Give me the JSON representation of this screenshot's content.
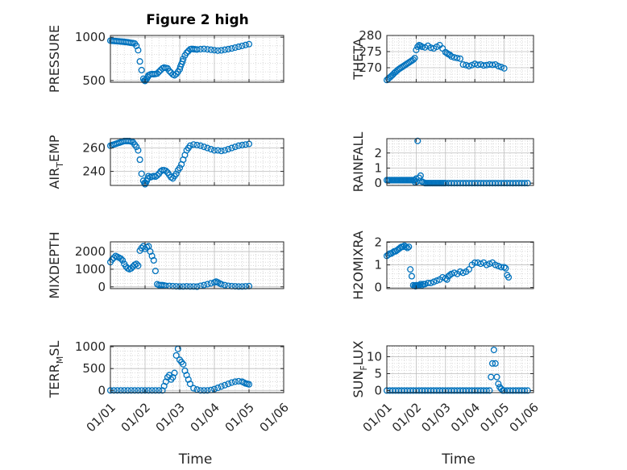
{
  "figure": {
    "title": "Figure 2 high",
    "marker_color": "#0072BD",
    "grid": true
  },
  "chart_data": [
    {
      "type": "scatter",
      "ylabel": "PRESSURE",
      "ylabel_sub": "",
      "ylabel_tail": "",
      "ylim": [
        480,
        1020
      ],
      "yticks": [
        500,
        1000
      ],
      "ytick_labels": [
        "500",
        "1000"
      ],
      "show_xticks": false,
      "title": "Figure 2 high",
      "x": [
        0,
        0.05,
        0.1,
        0.15,
        0.2,
        0.25,
        0.3,
        0.35,
        0.4,
        0.45,
        0.5,
        0.55,
        0.6,
        0.65,
        0.7,
        0.75,
        0.8,
        0.85,
        0.9,
        0.95,
        0.98,
        1.0,
        1.02,
        1.05,
        1.08,
        1.1,
        1.15,
        1.2,
        1.25,
        1.3,
        1.35,
        1.4,
        1.45,
        1.5,
        1.55,
        1.6,
        1.65,
        1.7,
        1.75,
        1.8,
        1.85,
        1.9,
        1.95,
        2.0,
        2.02,
        2.05,
        2.08,
        2.1,
        2.15,
        2.2,
        2.25,
        2.3,
        2.35,
        2.4,
        2.45,
        2.5,
        2.6,
        2.7,
        2.8,
        2.9,
        3.0,
        3.1,
        3.2,
        3.3,
        3.4,
        3.5,
        3.6,
        3.7,
        3.8,
        3.9,
        4.0
      ],
      "y": [
        960,
        958,
        957,
        955,
        953,
        952,
        950,
        948,
        946,
        944,
        942,
        938,
        935,
        932,
        928,
        900,
        850,
        720,
        620,
        520,
        500,
        495,
        505,
        520,
        540,
        560,
        570,
        575,
        572,
        575,
        580,
        600,
        620,
        640,
        650,
        645,
        640,
        610,
        590,
        570,
        560,
        575,
        600,
        630,
        660,
        690,
        720,
        750,
        790,
        820,
        840,
        860,
        865,
        862,
        860,
        858,
        862,
        865,
        860,
        855,
        850,
        845,
        848,
        855,
        862,
        870,
        880,
        890,
        900,
        910,
        920
      ],
      "x_domain": [
        0,
        5
      ]
    },
    {
      "type": "scatter",
      "ylabel": "THETA",
      "ylabel_sub": "",
      "ylabel_tail": "",
      "ylim": [
        265.5,
        280
      ],
      "yticks": [
        270,
        275,
        280
      ],
      "ytick_labels": [
        "270",
        "275",
        "280"
      ],
      "show_xticks": false,
      "x": [
        0,
        0.05,
        0.1,
        0.15,
        0.2,
        0.25,
        0.3,
        0.35,
        0.4,
        0.45,
        0.5,
        0.55,
        0.6,
        0.65,
        0.7,
        0.75,
        0.8,
        0.85,
        0.9,
        0.95,
        1.0,
        1.05,
        1.1,
        1.15,
        1.2,
        1.3,
        1.4,
        1.5,
        1.6,
        1.7,
        1.8,
        1.9,
        2.0,
        2.05,
        2.1,
        2.15,
        2.2,
        2.3,
        2.4,
        2.5,
        2.6,
        2.7,
        2.8,
        2.9,
        3.0,
        3.1,
        3.2,
        3.3,
        3.4,
        3.5,
        3.6,
        3.7,
        3.8,
        3.9,
        4.0
      ],
      "y": [
        266.2,
        266.6,
        267.0,
        267.4,
        267.8,
        268.3,
        268.7,
        269.1,
        269.5,
        269.8,
        270.1,
        270.4,
        270.7,
        271.0,
        271.3,
        271.6,
        271.9,
        272.2,
        272.5,
        273.0,
        275.5,
        276.5,
        277.0,
        276.8,
        276.5,
        276.3,
        276.8,
        276.2,
        276.0,
        276.5,
        277.0,
        276.0,
        274.8,
        274.5,
        274.2,
        274.0,
        273.5,
        273.2,
        273.0,
        272.8,
        271.0,
        270.8,
        270.5,
        270.8,
        271.2,
        270.9,
        271.0,
        270.7,
        270.8,
        271.0,
        270.9,
        271.0,
        270.5,
        270.2,
        269.8
      ],
      "x_domain": [
        0,
        5
      ]
    },
    {
      "type": "scatter",
      "ylabel": "AIR",
      "ylabel_sub": "T",
      "ylabel_tail": "EMP",
      "ylim": [
        228,
        268
      ],
      "yticks": [
        240,
        260
      ],
      "ytick_labels": [
        "240",
        "260"
      ],
      "show_xticks": false,
      "x": [
        0,
        0.05,
        0.1,
        0.15,
        0.2,
        0.25,
        0.3,
        0.35,
        0.4,
        0.45,
        0.5,
        0.55,
        0.6,
        0.65,
        0.7,
        0.75,
        0.8,
        0.85,
        0.9,
        0.95,
        0.98,
        1.0,
        1.02,
        1.05,
        1.08,
        1.1,
        1.15,
        1.2,
        1.25,
        1.3,
        1.35,
        1.4,
        1.45,
        1.5,
        1.55,
        1.6,
        1.65,
        1.7,
        1.75,
        1.8,
        1.85,
        1.9,
        1.95,
        2.0,
        2.05,
        2.1,
        2.15,
        2.2,
        2.25,
        2.3,
        2.4,
        2.5,
        2.6,
        2.7,
        2.8,
        2.9,
        3.0,
        3.1,
        3.2,
        3.3,
        3.4,
        3.5,
        3.6,
        3.7,
        3.8,
        3.9,
        4.0
      ],
      "y": [
        262,
        262.5,
        263,
        263.5,
        264,
        264.5,
        265,
        265.5,
        266,
        266,
        266,
        266,
        265.5,
        265,
        263,
        261,
        258,
        250,
        238,
        232,
        230,
        229,
        230,
        232,
        234,
        236,
        235,
        235.5,
        236,
        235.5,
        236.5,
        238,
        240,
        241,
        241,
        240.5,
        239,
        237,
        235,
        234,
        236,
        238,
        241,
        243,
        246,
        250,
        254,
        258,
        260,
        262,
        263,
        262.5,
        262,
        261,
        260,
        259,
        258,
        258,
        257.5,
        258,
        259,
        260,
        261,
        262,
        262.5,
        263,
        263.5
      ],
      "x_domain": [
        0,
        5
      ]
    },
    {
      "type": "scatter",
      "ylabel": "RAINFALL",
      "ylabel_sub": "",
      "ylabel_tail": "",
      "ylim": [
        -0.15,
        2.95
      ],
      "yticks": [
        0,
        1,
        2
      ],
      "ytick_labels": [
        "0",
        "1",
        "2"
      ],
      "show_xticks": false,
      "x": [
        0,
        0.05,
        0.1,
        0.15,
        0.2,
        0.25,
        0.3,
        0.35,
        0.4,
        0.45,
        0.5,
        0.55,
        0.6,
        0.65,
        0.7,
        0.75,
        0.8,
        0.85,
        0.9,
        0.95,
        0.97,
        1.0,
        1.02,
        1.05,
        1.1,
        1.15,
        1.2,
        1.25,
        1.3,
        1.35,
        1.4,
        1.45,
        1.5,
        1.55,
        1.6,
        1.65,
        1.7,
        1.75,
        1.8,
        1.85,
        1.9,
        1.95,
        2.0,
        2.1,
        2.2,
        2.3,
        2.4,
        2.5,
        2.6,
        2.7,
        2.8,
        2.9,
        3.0,
        3.1,
        3.2,
        3.3,
        3.4,
        3.5,
        3.6,
        3.7,
        3.8,
        3.9,
        4.0,
        4.1,
        4.2,
        4.3,
        4.4,
        4.5,
        4.6,
        4.7,
        4.8
      ],
      "y": [
        0.2,
        0.2,
        0.2,
        0.2,
        0.2,
        0.2,
        0.2,
        0.2,
        0.2,
        0.2,
        0.2,
        0.2,
        0.2,
        0.2,
        0.2,
        0.2,
        0.2,
        0.2,
        0.2,
        0.2,
        0.05,
        0.3,
        0.1,
        2.8,
        0.35,
        0.5,
        0.1,
        0.05,
        0,
        0,
        0,
        0,
        0,
        0,
        0,
        0,
        0,
        0,
        0,
        0,
        0,
        0,
        0,
        0,
        0,
        0,
        0,
        0,
        0,
        0,
        0,
        0,
        0,
        0,
        0,
        0,
        0,
        0,
        0,
        0,
        0,
        0,
        0,
        0,
        0,
        0,
        0,
        0,
        0,
        0,
        0
      ],
      "x_domain": [
        0,
        5
      ]
    },
    {
      "type": "scatter",
      "ylabel": "MIXDEPTH",
      "ylabel_sub": "",
      "ylabel_tail": "",
      "ylim": [
        -100,
        2550
      ],
      "yticks": [
        0,
        1000,
        2000
      ],
      "ytick_labels": [
        "0",
        "1000",
        "2000"
      ],
      "show_xticks": false,
      "x": [
        0,
        0.05,
        0.1,
        0.15,
        0.2,
        0.25,
        0.3,
        0.35,
        0.4,
        0.45,
        0.5,
        0.55,
        0.6,
        0.65,
        0.7,
        0.75,
        0.8,
        0.85,
        0.9,
        0.95,
        1.0,
        1.05,
        1.1,
        1.15,
        1.2,
        1.25,
        1.3,
        1.35,
        1.4,
        1.45,
        1.5,
        1.55,
        1.6,
        1.7,
        1.8,
        1.9,
        2.0,
        2.1,
        2.2,
        2.3,
        2.4,
        2.5,
        2.6,
        2.7,
        2.8,
        2.9,
        3.0,
        3.05,
        3.1,
        3.15,
        3.2,
        3.3,
        3.4,
        3.5,
        3.6,
        3.7,
        3.8,
        3.9,
        4.0
      ],
      "y": [
        1400,
        1550,
        1650,
        1750,
        1700,
        1650,
        1600,
        1500,
        1300,
        1150,
        1050,
        1000,
        1050,
        1150,
        1250,
        1300,
        1200,
        2050,
        2200,
        2300,
        2150,
        2250,
        2300,
        2000,
        1750,
        1500,
        900,
        150,
        100,
        100,
        100,
        80,
        60,
        50,
        40,
        30,
        20,
        20,
        30,
        20,
        20,
        10,
        60,
        100,
        150,
        200,
        250,
        300,
        250,
        200,
        150,
        100,
        60,
        40,
        30,
        20,
        20,
        30,
        40
      ],
      "x_domain": [
        0,
        5
      ]
    },
    {
      "type": "scatter",
      "ylabel": "H2OMIXRA",
      "ylabel_sub": "",
      "ylabel_tail": "",
      "ylim": [
        -0.05,
        2.02
      ],
      "yticks": [
        0,
        1,
        2
      ],
      "ytick_labels": [
        "0",
        "1",
        "2"
      ],
      "show_xticks": false,
      "x": [
        0,
        0.05,
        0.1,
        0.15,
        0.2,
        0.25,
        0.3,
        0.35,
        0.4,
        0.45,
        0.5,
        0.55,
        0.6,
        0.65,
        0.7,
        0.75,
        0.8,
        0.85,
        0.9,
        0.95,
        0.98,
        1.0,
        1.02,
        1.05,
        1.1,
        1.15,
        1.2,
        1.25,
        1.3,
        1.4,
        1.5,
        1.6,
        1.7,
        1.8,
        1.9,
        2.0,
        2.05,
        2.1,
        2.15,
        2.2,
        2.3,
        2.4,
        2.5,
        2.6,
        2.7,
        2.8,
        2.9,
        3.0,
        3.1,
        3.2,
        3.3,
        3.4,
        3.5,
        3.6,
        3.7,
        3.8,
        3.9,
        4.0,
        4.05,
        4.1,
        4.15
      ],
      "y": [
        1.4,
        1.45,
        1.5,
        1.5,
        1.55,
        1.6,
        1.6,
        1.65,
        1.7,
        1.75,
        1.8,
        1.8,
        1.85,
        1.8,
        1.75,
        1.8,
        0.8,
        0.5,
        0.1,
        0.08,
        0.05,
        0.1,
        0.1,
        0.08,
        0.1,
        0.15,
        0.1,
        0.15,
        0.15,
        0.2,
        0.2,
        0.25,
        0.3,
        0.35,
        0.45,
        0.4,
        0.35,
        0.5,
        0.55,
        0.6,
        0.65,
        0.6,
        0.7,
        0.65,
        0.7,
        0.8,
        1.0,
        1.1,
        1.1,
        1.05,
        1.1,
        1.0,
        1.05,
        1.1,
        1.0,
        0.95,
        0.9,
        0.9,
        0.85,
        0.55,
        0.45
      ],
      "x_domain": [
        0,
        5
      ]
    },
    {
      "type": "scatter",
      "ylabel": "TERR",
      "ylabel_sub": "M",
      "ylabel_tail": "SL",
      "ylim": [
        -50,
        1020
      ],
      "yticks": [
        0,
        500,
        1000
      ],
      "ytick_labels": [
        "0",
        "500",
        "1000"
      ],
      "show_xticks": true,
      "xlabel": "Time",
      "xticks": [
        0,
        1,
        2,
        3,
        4,
        5
      ],
      "xtick_labels": [
        "01/01",
        "01/02",
        "01/03",
        "01/04",
        "01/05",
        "01/06"
      ],
      "x": [
        0,
        0.1,
        0.2,
        0.3,
        0.4,
        0.5,
        0.6,
        0.7,
        0.8,
        0.9,
        1.0,
        1.1,
        1.2,
        1.3,
        1.4,
        1.5,
        1.55,
        1.6,
        1.65,
        1.7,
        1.75,
        1.8,
        1.85,
        1.9,
        1.95,
        2.0,
        2.05,
        2.1,
        2.15,
        2.2,
        2.25,
        2.3,
        2.4,
        2.5,
        2.6,
        2.7,
        2.8,
        2.9,
        3.0,
        3.1,
        3.2,
        3.3,
        3.4,
        3.5,
        3.6,
        3.7,
        3.8,
        3.85,
        3.9,
        3.95,
        4.0
      ],
      "y": [
        0,
        0,
        0,
        0,
        0,
        0,
        0,
        0,
        0,
        0,
        0,
        0,
        0,
        0,
        0,
        0,
        100,
        200,
        300,
        350,
        250,
        300,
        400,
        800,
        950,
        700,
        650,
        600,
        450,
        350,
        250,
        150,
        50,
        20,
        0,
        0,
        0,
        10,
        30,
        60,
        90,
        120,
        150,
        180,
        200,
        210,
        200,
        180,
        160,
        150,
        140
      ],
      "x_domain": [
        0,
        5
      ]
    },
    {
      "type": "scatter",
      "ylabel": "SUN",
      "ylabel_sub": "F",
      "ylabel_tail": "LUX",
      "ylim": [
        -0.6,
        13.2
      ],
      "yticks": [
        0,
        5,
        10
      ],
      "ytick_labels": [
        "0",
        "5",
        "10"
      ],
      "show_xticks": true,
      "xlabel": "Time",
      "xticks": [
        0,
        1,
        2,
        3,
        4,
        5
      ],
      "xtick_labels": [
        "01/01",
        "01/02",
        "01/03",
        "01/04",
        "01/05",
        "01/06"
      ],
      "x": [
        0,
        0.1,
        0.2,
        0.3,
        0.4,
        0.5,
        0.6,
        0.7,
        0.8,
        0.9,
        1.0,
        1.1,
        1.2,
        1.3,
        1.4,
        1.5,
        1.6,
        1.7,
        1.8,
        1.9,
        2.0,
        2.1,
        2.2,
        2.3,
        2.4,
        2.5,
        2.6,
        2.7,
        2.8,
        2.9,
        3.0,
        3.1,
        3.2,
        3.3,
        3.4,
        3.5,
        3.55,
        3.6,
        3.65,
        3.7,
        3.75,
        3.8,
        3.85,
        3.9,
        3.95,
        4.0,
        4.1,
        4.2,
        4.3,
        4.4,
        4.5,
        4.6,
        4.7,
        4.8
      ],
      "y": [
        0,
        0,
        0,
        0,
        0,
        0,
        0,
        0,
        0,
        0,
        0,
        0,
        0,
        0,
        0,
        0,
        0,
        0,
        0,
        0,
        0,
        0,
        0,
        0,
        0,
        0,
        0,
        0,
        0,
        0,
        0,
        0,
        0,
        0,
        0,
        0,
        4,
        8,
        12,
        8,
        4,
        2,
        1,
        0.5,
        0,
        0,
        0,
        0,
        0,
        0,
        0,
        0,
        0,
        0
      ],
      "x_domain": [
        0,
        5
      ]
    }
  ]
}
